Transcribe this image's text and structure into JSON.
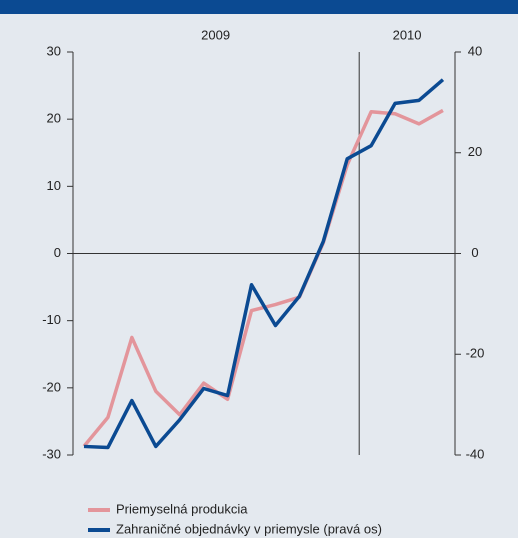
{
  "chart_data": {
    "type": "line",
    "categories": [
      null,
      null,
      null,
      null,
      null,
      null,
      null,
      null,
      null,
      null,
      null,
      null,
      null,
      null,
      null,
      null
    ],
    "groups": [
      {
        "label": "2009",
        "count": 12
      },
      {
        "label": "2010",
        "count": 4
      }
    ],
    "series": [
      {
        "name": "Priemyselná produkcia",
        "color": "#e3959b",
        "values": [
          -28.7,
          -24.4,
          -12.5,
          -20.5,
          -24,
          -19.3,
          -21.7,
          -8.5,
          -7.6,
          -6.5,
          1.6,
          13.2,
          21.1,
          20.8,
          19.3,
          21.3
        ]
      },
      {
        "name": "Zahraničné objednávky v priemysle (pravá os)",
        "color": "#0b4a92",
        "axis": "y2",
        "values": [
          -38.3,
          -38.5,
          -29.2,
          -38.3,
          -33,
          -26.8,
          -28.2,
          -6.2,
          -14.3,
          -8.5,
          2.4,
          18.8,
          21.4,
          29.8,
          30.4,
          34.5
        ]
      }
    ],
    "ylim": [
      -30,
      30
    ],
    "yticks": [
      -30,
      -20,
      -10,
      0,
      10,
      20,
      30
    ],
    "y2lim": [
      -40,
      40
    ],
    "y2ticks": [
      -40,
      -20,
      0,
      20,
      40
    ]
  }
}
